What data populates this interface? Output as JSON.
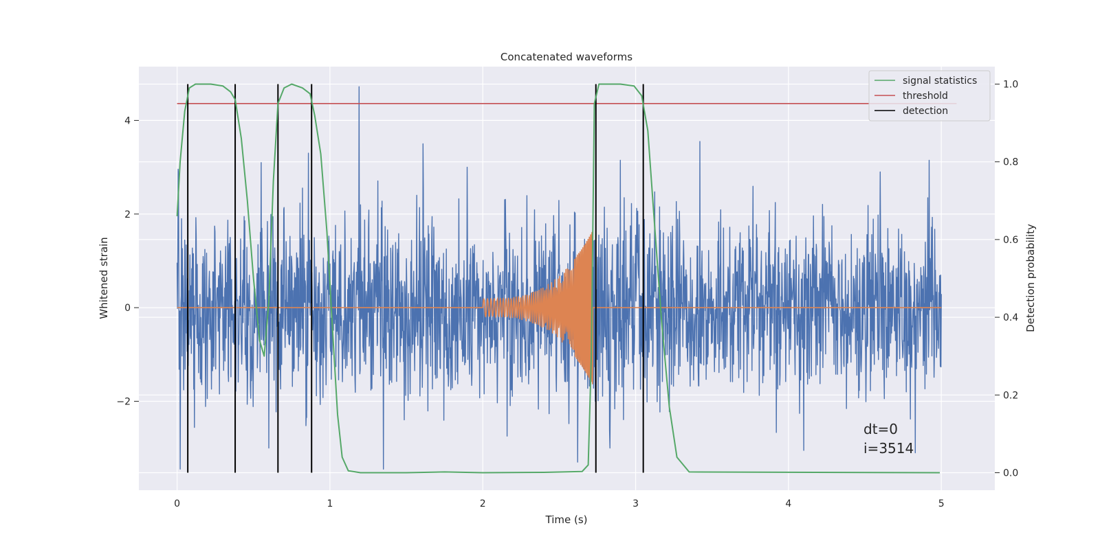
{
  "chart_data": {
    "type": "line",
    "title": "Concatenated waveforms",
    "xlabel": "Time (s)",
    "ylabel_left": "Whitened strain",
    "ylabel_right": "Detection probability",
    "xlim": [
      -0.25,
      5.35
    ],
    "ylim_left": [
      -3.9,
      5.15
    ],
    "ylim_right": [
      -0.045,
      1.045
    ],
    "x_ticks": [
      0,
      1,
      2,
      3,
      4,
      5
    ],
    "x_tick_labels": [
      "0",
      "1",
      "2",
      "3",
      "4",
      "5"
    ],
    "y_left_ticks": [
      -2,
      0,
      2,
      4
    ],
    "y_left_tick_labels": [
      "−2",
      "0",
      "2",
      "4"
    ],
    "y_right_ticks": [
      0.0,
      0.2,
      0.4,
      0.6,
      0.8,
      1.0
    ],
    "y_right_tick_labels": [
      "0.0",
      "0.2",
      "0.4",
      "0.6",
      "0.8",
      "1.0"
    ],
    "grid": true,
    "legend_position": "top-right",
    "legend": [
      {
        "label": "signal statistics",
        "color": "#55a868"
      },
      {
        "label": "threshold",
        "color": "#c44e52"
      },
      {
        "label": "detection",
        "color": "#000000"
      }
    ],
    "series": [
      {
        "name": "whitened strain",
        "axis": "left",
        "color": "#4c72b0",
        "style": "noise",
        "x_range": [
          0,
          5
        ],
        "spikes": [
          {
            "x": 0.01,
            "y": 2.85
          },
          {
            "x": 0.02,
            "y": -3.45
          },
          {
            "x": 0.03,
            "y": 1.9
          },
          {
            "x": 0.55,
            "y": 3.1
          },
          {
            "x": 0.6,
            "y": -3.0
          },
          {
            "x": 0.86,
            "y": 3.3
          },
          {
            "x": 1.19,
            "y": 4.72
          },
          {
            "x": 1.35,
            "y": -3.45
          },
          {
            "x": 1.61,
            "y": 3.5
          },
          {
            "x": 2.62,
            "y": -3.3
          },
          {
            "x": 3.42,
            "y": 3.55
          },
          {
            "x": 4.92,
            "y": 3.15
          },
          {
            "x": 4.1,
            "y": -3.05
          },
          {
            "x": 4.83,
            "y": -3.1
          },
          {
            "x": 2.9,
            "y": 3.15
          },
          {
            "x": 4.6,
            "y": 2.9
          }
        ]
      },
      {
        "name": "injected chirp",
        "axis": "left",
        "color": "#dd8452",
        "style": "chirp",
        "baseline": 0,
        "chirp_start": 2.0,
        "chirp_end": 2.72,
        "max_amplitude": 1.65
      },
      {
        "name": "signal statistics",
        "axis": "right",
        "color": "#55a868",
        "x": [
          0.0,
          0.02,
          0.05,
          0.08,
          0.12,
          0.17,
          0.22,
          0.3,
          0.35,
          0.38,
          0.42,
          0.46,
          0.5,
          0.54,
          0.57,
          0.6,
          0.63,
          0.66,
          0.7,
          0.75,
          0.82,
          0.87,
          0.9,
          0.94,
          0.98,
          1.02,
          1.05,
          1.08,
          1.12,
          1.2,
          1.5,
          1.75,
          2.0,
          2.4,
          2.65,
          2.69,
          2.71,
          2.73,
          2.76,
          2.82,
          2.9,
          2.99,
          3.04,
          3.08,
          3.12,
          3.17,
          3.22,
          3.27,
          3.35,
          4.99
        ],
        "y": [
          0.66,
          0.8,
          0.93,
          0.99,
          1.0,
          1.0,
          1.0,
          0.995,
          0.98,
          0.96,
          0.86,
          0.7,
          0.5,
          0.34,
          0.3,
          0.44,
          0.75,
          0.95,
          0.99,
          1.0,
          0.99,
          0.975,
          0.92,
          0.82,
          0.62,
          0.35,
          0.15,
          0.04,
          0.005,
          0.0,
          0.0,
          0.002,
          0.0,
          0.001,
          0.003,
          0.02,
          0.3,
          0.95,
          1.0,
          1.0,
          1.0,
          0.995,
          0.97,
          0.88,
          0.66,
          0.39,
          0.17,
          0.04,
          0.002,
          0.0
        ]
      },
      {
        "name": "threshold",
        "axis": "right",
        "color": "#c44e52",
        "x": [
          0,
          5.1
        ],
        "y": [
          0.95,
          0.95
        ]
      }
    ],
    "detections": {
      "color": "#000000",
      "x": [
        0.07,
        0.38,
        0.66,
        0.88,
        2.74,
        3.05
      ],
      "y_range": [
        0.0,
        1.0
      ]
    },
    "annotation": {
      "lines": [
        "dt=0",
        "i=3514"
      ],
      "x": 4.5,
      "y_right": 0.1
    }
  }
}
